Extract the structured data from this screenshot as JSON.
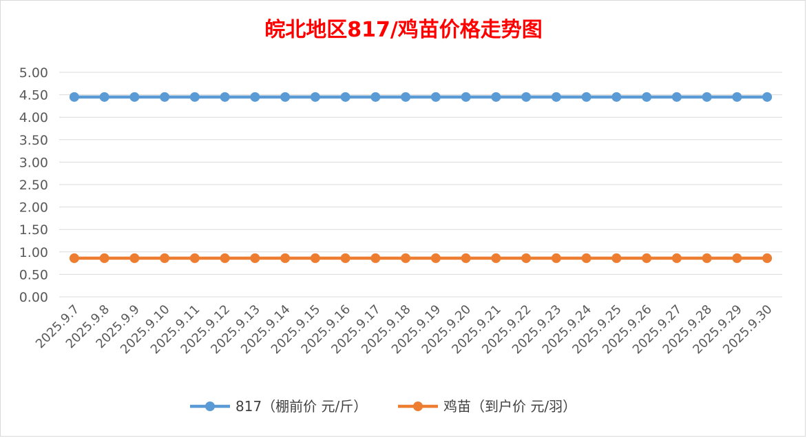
{
  "chart_data": {
    "type": "line",
    "title": "皖北地区817/鸡苗价格走势图",
    "title_color": "#ff0000",
    "ylim": [
      0,
      5
    ],
    "y_ticks": [
      "0.00",
      "0.50",
      "1.00",
      "1.50",
      "2.00",
      "2.50",
      "3.00",
      "3.50",
      "4.00",
      "4.50",
      "5.00"
    ],
    "y_tick_values": [
      0,
      0.5,
      1,
      1.5,
      2,
      2.5,
      3,
      3.5,
      4,
      4.5,
      5
    ],
    "grid": true,
    "legend_position": "bottom",
    "categories": [
      "2025.9.7",
      "2025.9.8",
      "2025.9.9",
      "2025.9.10",
      "2025.9.11",
      "2025.9.12",
      "2025.9.13",
      "2025.9.14",
      "2025.9.15",
      "2025.9.16",
      "2025.9.17",
      "2025.9.18",
      "2025.9.19",
      "2025.9.20",
      "2025.9.21",
      "2025.9.22",
      "2025.9.23",
      "2025.9.24",
      "2025.9.25",
      "2025.9.26",
      "2025.9.27",
      "2025.9.28",
      "2025.9.29",
      "2025.9.30"
    ],
    "series": [
      {
        "name": "817（棚前价 元/斤）",
        "color": "#5b9bd5",
        "values": [
          4.45,
          4.45,
          4.45,
          4.45,
          4.45,
          4.45,
          4.45,
          4.45,
          4.45,
          4.45,
          4.45,
          4.45,
          4.45,
          4.45,
          4.45,
          4.45,
          4.45,
          4.45,
          4.45,
          4.45,
          4.45,
          4.45,
          4.45,
          4.45
        ]
      },
      {
        "name": "鸡苗（到户价 元/羽）",
        "color": "#ed7d31",
        "values": [
          0.86,
          0.86,
          0.86,
          0.86,
          0.86,
          0.86,
          0.86,
          0.86,
          0.86,
          0.86,
          0.86,
          0.86,
          0.86,
          0.86,
          0.86,
          0.86,
          0.86,
          0.86,
          0.86,
          0.86,
          0.86,
          0.86,
          0.86,
          0.86
        ]
      }
    ]
  }
}
